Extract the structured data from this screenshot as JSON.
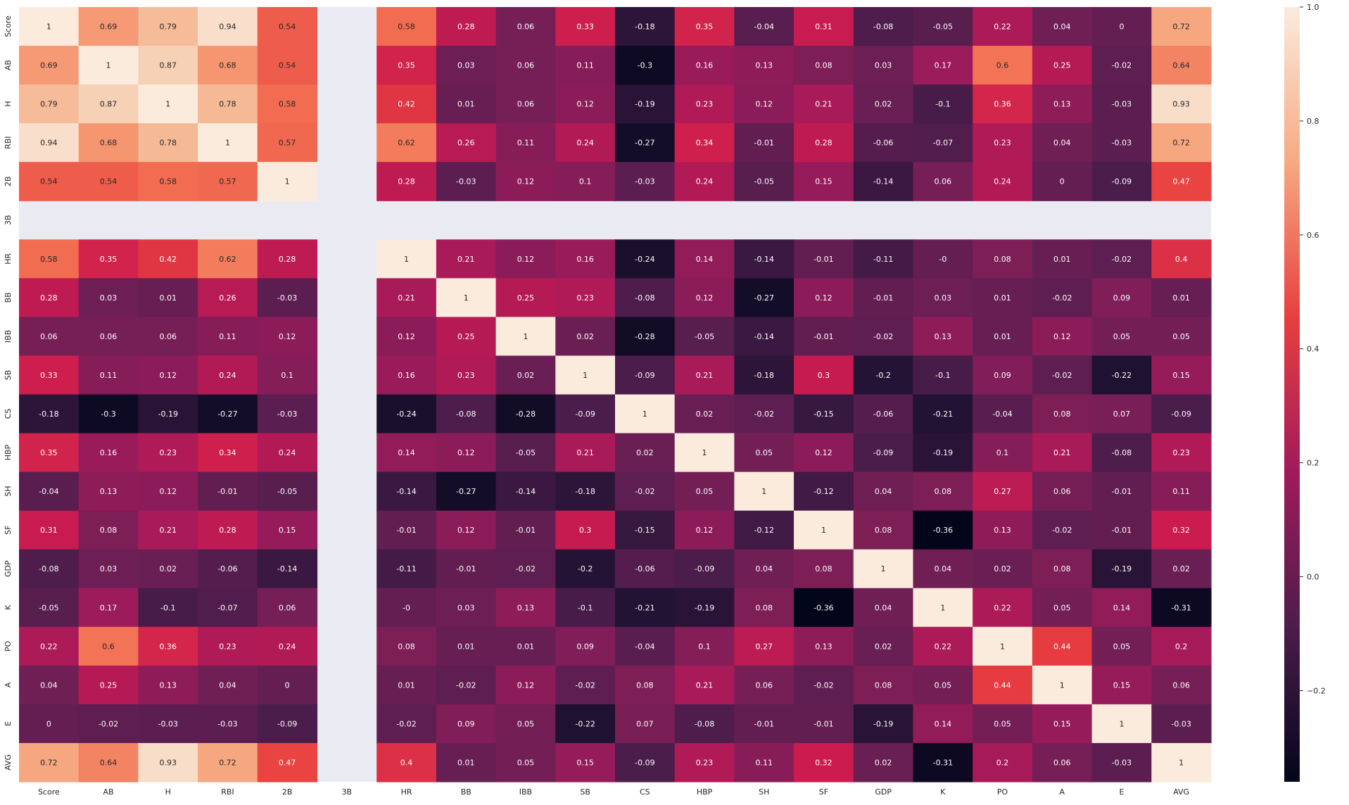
{
  "chart_data": {
    "type": "heatmap",
    "title": "",
    "xlabel": "",
    "ylabel": "",
    "labels": [
      "Score",
      "AB",
      "H",
      "RBI",
      "2B",
      "3B",
      "HR",
      "BB",
      "IBB",
      "SB",
      "CS",
      "HBP",
      "SH",
      "SF",
      "GDP",
      "K",
      "PO",
      "A",
      "E",
      "AVG"
    ],
    "missing_label": "3B",
    "matrix": [
      [
        1,
        0.69,
        0.79,
        0.94,
        0.54,
        null,
        0.58,
        0.28,
        0.06,
        0.33,
        -0.18,
        0.35,
        -0.04,
        0.31,
        -0.08,
        -0.05,
        0.22,
        0.04,
        0,
        0.72
      ],
      [
        0.69,
        1,
        0.87,
        0.68,
        0.54,
        null,
        0.35,
        0.03,
        0.06,
        0.11,
        -0.3,
        0.16,
        0.13,
        0.08,
        0.03,
        0.17,
        0.6,
        0.25,
        -0.02,
        0.64
      ],
      [
        0.79,
        0.87,
        1,
        0.78,
        0.58,
        null,
        0.42,
        0.01,
        0.06,
        0.12,
        -0.19,
        0.23,
        0.12,
        0.21,
        0.02,
        -0.1,
        0.36,
        0.13,
        -0.03,
        0.93
      ],
      [
        0.94,
        0.68,
        0.78,
        1,
        0.57,
        null,
        0.62,
        0.26,
        0.11,
        0.24,
        -0.27,
        0.34,
        -0.01,
        0.28,
        -0.06,
        -0.07,
        0.23,
        0.04,
        -0.03,
        0.72
      ],
      [
        0.54,
        0.54,
        0.58,
        0.57,
        1,
        null,
        0.28,
        -0.03,
        0.12,
        0.1,
        -0.03,
        0.24,
        -0.05,
        0.15,
        -0.14,
        0.06,
        0.24,
        0,
        -0.09,
        0.47
      ],
      [
        null,
        null,
        null,
        null,
        null,
        null,
        null,
        null,
        null,
        null,
        null,
        null,
        null,
        null,
        null,
        null,
        null,
        null,
        null,
        null
      ],
      [
        0.58,
        0.35,
        0.42,
        0.62,
        0.28,
        null,
        1,
        0.21,
        0.12,
        0.16,
        -0.24,
        0.14,
        -0.14,
        -0.01,
        -0.11,
        "-0",
        0.08,
        0.01,
        -0.02,
        0.4
      ],
      [
        0.28,
        0.03,
        0.01,
        0.26,
        -0.03,
        null,
        0.21,
        1,
        0.25,
        0.23,
        -0.08,
        0.12,
        -0.27,
        0.12,
        -0.01,
        0.03,
        0.01,
        -0.02,
        0.09,
        0.01
      ],
      [
        0.06,
        0.06,
        0.06,
        0.11,
        0.12,
        null,
        0.12,
        0.25,
        1,
        0.02,
        -0.28,
        -0.05,
        -0.14,
        -0.01,
        -0.02,
        0.13,
        0.01,
        0.12,
        0.05,
        0.05
      ],
      [
        0.33,
        0.11,
        0.12,
        0.24,
        0.1,
        null,
        0.16,
        0.23,
        0.02,
        1,
        -0.09,
        0.21,
        -0.18,
        0.3,
        -0.2,
        -0.1,
        0.09,
        -0.02,
        -0.22,
        0.15
      ],
      [
        -0.18,
        -0.3,
        -0.19,
        -0.27,
        -0.03,
        null,
        -0.24,
        -0.08,
        -0.28,
        -0.09,
        1,
        0.02,
        -0.02,
        -0.15,
        -0.06,
        -0.21,
        -0.04,
        0.08,
        0.07,
        -0.09
      ],
      [
        0.35,
        0.16,
        0.23,
        0.34,
        0.24,
        null,
        0.14,
        0.12,
        -0.05,
        0.21,
        0.02,
        1,
        0.05,
        0.12,
        -0.09,
        -0.19,
        0.1,
        0.21,
        -0.08,
        0.23
      ],
      [
        -0.04,
        0.13,
        0.12,
        -0.01,
        -0.05,
        null,
        -0.14,
        -0.27,
        -0.14,
        -0.18,
        -0.02,
        0.05,
        1,
        -0.12,
        0.04,
        0.08,
        0.27,
        0.06,
        -0.01,
        0.11
      ],
      [
        0.31,
        0.08,
        0.21,
        0.28,
        0.15,
        null,
        -0.01,
        0.12,
        -0.01,
        0.3,
        -0.15,
        0.12,
        -0.12,
        1,
        0.08,
        -0.36,
        0.13,
        -0.02,
        -0.01,
        0.32
      ],
      [
        -0.08,
        0.03,
        0.02,
        -0.06,
        -0.14,
        null,
        -0.11,
        -0.01,
        -0.02,
        -0.2,
        -0.06,
        -0.09,
        0.04,
        0.08,
        1,
        0.04,
        0.02,
        0.08,
        -0.19,
        0.02
      ],
      [
        -0.05,
        0.17,
        -0.1,
        -0.07,
        0.06,
        null,
        "-0",
        0.03,
        0.13,
        -0.1,
        -0.21,
        -0.19,
        0.08,
        -0.36,
        0.04,
        1,
        0.22,
        0.05,
        0.14,
        -0.31
      ],
      [
        0.22,
        0.6,
        0.36,
        0.23,
        0.24,
        null,
        0.08,
        0.01,
        0.01,
        0.09,
        -0.04,
        0.1,
        0.27,
        0.13,
        0.02,
        0.22,
        1,
        0.44,
        0.05,
        0.2
      ],
      [
        0.04,
        0.25,
        0.13,
        0.04,
        0,
        null,
        0.01,
        -0.02,
        0.12,
        -0.02,
        0.08,
        0.21,
        0.06,
        -0.02,
        0.08,
        0.05,
        0.44,
        1,
        0.15,
        0.06
      ],
      [
        0,
        -0.02,
        -0.03,
        -0.03,
        -0.09,
        null,
        -0.02,
        0.09,
        0.05,
        -0.22,
        0.07,
        -0.08,
        -0.01,
        -0.01,
        -0.19,
        0.14,
        0.05,
        0.15,
        1,
        -0.03
      ],
      [
        0.72,
        0.64,
        0.93,
        0.72,
        0.47,
        null,
        0.4,
        0.01,
        0.05,
        0.15,
        -0.09,
        0.23,
        0.11,
        0.32,
        0.02,
        -0.31,
        0.2,
        0.06,
        -0.03,
        1
      ]
    ],
    "colorbar": {
      "min": -0.36,
      "max": 1.0,
      "ticks": [
        -0.2,
        0,
        0.2,
        0.4,
        0.6,
        0.8,
        1.0
      ],
      "tick_labels": [
        "−0.2",
        "0.0",
        "0.2",
        "0.4",
        "0.6",
        "0.8",
        "1.0"
      ],
      "colormap": "rocket"
    },
    "missing_color": "#eaeaf2",
    "grid": false,
    "legend": "right"
  }
}
